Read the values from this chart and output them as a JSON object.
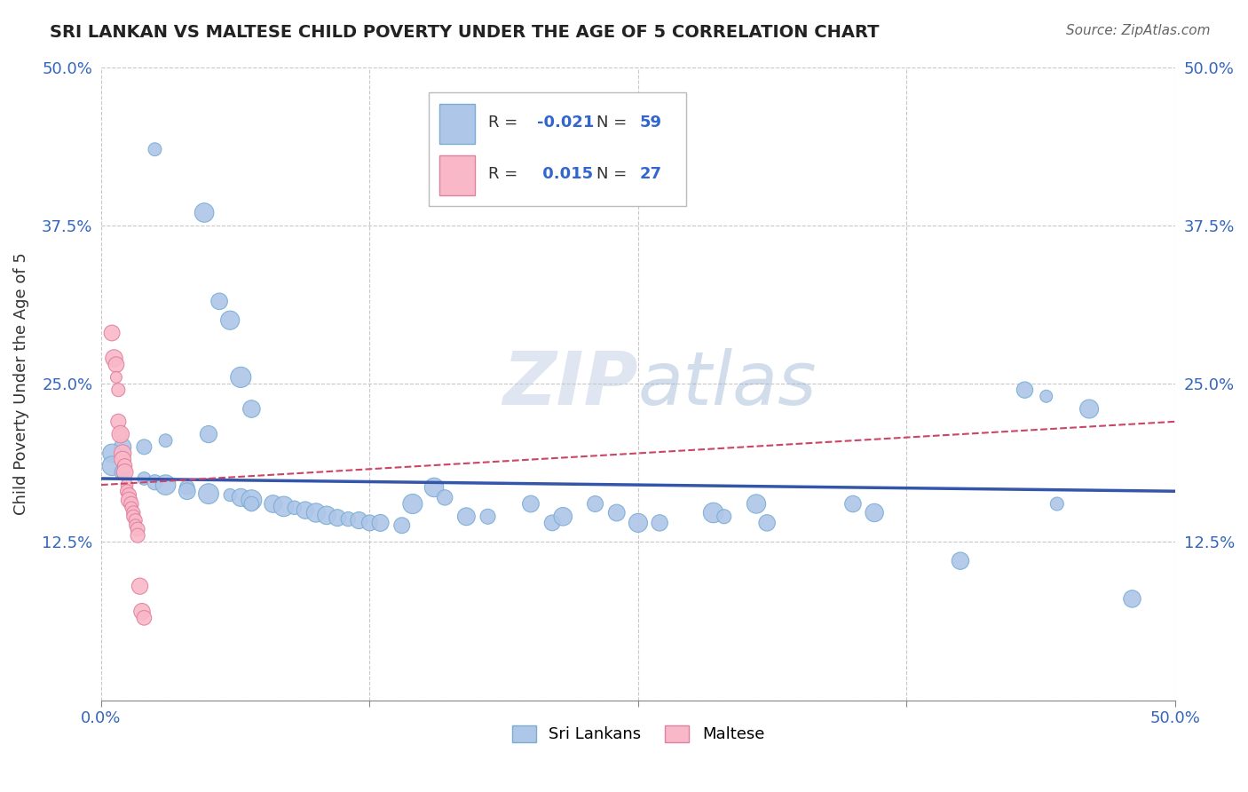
{
  "title": "SRI LANKAN VS MALTESE CHILD POVERTY UNDER THE AGE OF 5 CORRELATION CHART",
  "source": "Source: ZipAtlas.com",
  "ylabel": "Child Poverty Under the Age of 5",
  "xlim": [
    0.0,
    0.5
  ],
  "ylim": [
    0.0,
    0.5
  ],
  "xticks": [
    0.0,
    0.125,
    0.25,
    0.375,
    0.5
  ],
  "xticklabels": [
    "0.0%",
    "",
    "",
    "",
    "50.0%"
  ],
  "yticks": [
    0.125,
    0.25,
    0.375,
    0.5
  ],
  "yticklabels": [
    "12.5%",
    "25.0%",
    "37.5%",
    "50.0%"
  ],
  "background_color": "#ffffff",
  "grid_color": "#c8c8c8",
  "watermark": "ZIPatlas",
  "sri_lankans": {
    "color": "#aec6e8",
    "edge_color": "#7aadd4",
    "line_color": "#3355aa",
    "R": -0.021,
    "N": 59,
    "points": [
      [
        0.025,
        0.435
      ],
      [
        0.048,
        0.385
      ],
      [
        0.055,
        0.315
      ],
      [
        0.06,
        0.3
      ],
      [
        0.065,
        0.255
      ],
      [
        0.07,
        0.23
      ],
      [
        0.05,
        0.21
      ],
      [
        0.03,
        0.205
      ],
      [
        0.02,
        0.2
      ],
      [
        0.01,
        0.2
      ],
      [
        0.005,
        0.195
      ],
      [
        0.005,
        0.185
      ],
      [
        0.01,
        0.18
      ],
      [
        0.02,
        0.175
      ],
      [
        0.025,
        0.172
      ],
      [
        0.03,
        0.17
      ],
      [
        0.04,
        0.168
      ],
      [
        0.04,
        0.165
      ],
      [
        0.05,
        0.163
      ],
      [
        0.06,
        0.162
      ],
      [
        0.065,
        0.16
      ],
      [
        0.07,
        0.158
      ],
      [
        0.07,
        0.155
      ],
      [
        0.08,
        0.155
      ],
      [
        0.085,
        0.153
      ],
      [
        0.09,
        0.152
      ],
      [
        0.095,
        0.15
      ],
      [
        0.1,
        0.148
      ],
      [
        0.105,
        0.146
      ],
      [
        0.11,
        0.144
      ],
      [
        0.115,
        0.143
      ],
      [
        0.12,
        0.142
      ],
      [
        0.125,
        0.14
      ],
      [
        0.13,
        0.14
      ],
      [
        0.14,
        0.138
      ],
      [
        0.145,
        0.155
      ],
      [
        0.155,
        0.168
      ],
      [
        0.16,
        0.16
      ],
      [
        0.17,
        0.145
      ],
      [
        0.18,
        0.145
      ],
      [
        0.2,
        0.155
      ],
      [
        0.21,
        0.14
      ],
      [
        0.215,
        0.145
      ],
      [
        0.23,
        0.155
      ],
      [
        0.24,
        0.148
      ],
      [
        0.25,
        0.14
      ],
      [
        0.26,
        0.14
      ],
      [
        0.285,
        0.148
      ],
      [
        0.29,
        0.145
      ],
      [
        0.305,
        0.155
      ],
      [
        0.31,
        0.14
      ],
      [
        0.35,
        0.155
      ],
      [
        0.36,
        0.148
      ],
      [
        0.4,
        0.11
      ],
      [
        0.43,
        0.245
      ],
      [
        0.44,
        0.24
      ],
      [
        0.445,
        0.155
      ],
      [
        0.46,
        0.23
      ],
      [
        0.48,
        0.08
      ]
    ]
  },
  "maltese": {
    "color": "#f9b8c8",
    "edge_color": "#e080a0",
    "line_color": "#cc4466",
    "R": 0.015,
    "N": 27,
    "points": [
      [
        0.005,
        0.29
      ],
      [
        0.006,
        0.27
      ],
      [
        0.007,
        0.265
      ],
      [
        0.007,
        0.255
      ],
      [
        0.008,
        0.245
      ],
      [
        0.008,
        0.22
      ],
      [
        0.009,
        0.21
      ],
      [
        0.009,
        0.21
      ],
      [
        0.01,
        0.195
      ],
      [
        0.01,
        0.19
      ],
      [
        0.011,
        0.185
      ],
      [
        0.011,
        0.18
      ],
      [
        0.012,
        0.17
      ],
      [
        0.012,
        0.165
      ],
      [
        0.013,
        0.162
      ],
      [
        0.013,
        0.158
      ],
      [
        0.014,
        0.155
      ],
      [
        0.014,
        0.152
      ],
      [
        0.015,
        0.148
      ],
      [
        0.015,
        0.145
      ],
      [
        0.016,
        0.142
      ],
      [
        0.016,
        0.138
      ],
      [
        0.017,
        0.135
      ],
      [
        0.017,
        0.13
      ],
      [
        0.018,
        0.09
      ],
      [
        0.019,
        0.07
      ],
      [
        0.02,
        0.065
      ]
    ]
  }
}
